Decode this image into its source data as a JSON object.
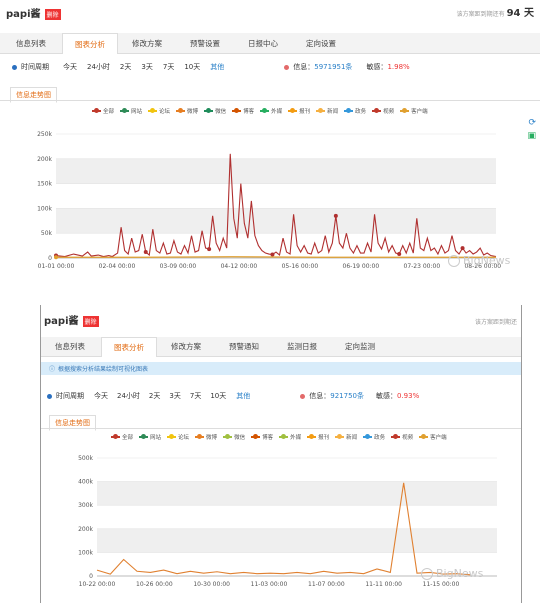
{
  "screen1": {
    "title": "papi酱",
    "badge": "删除",
    "expire_label": "该方案距到期还有",
    "expire_value": "94 天",
    "tabs": [
      {
        "label": "信息列表",
        "active": false
      },
      {
        "label": "图表分析",
        "active": true
      },
      {
        "label": "修改方案",
        "active": false
      },
      {
        "label": "预警设置",
        "active": false
      },
      {
        "label": "日报中心",
        "active": false
      },
      {
        "label": "定向设置",
        "active": false
      }
    ],
    "period": {
      "label": "时间周期",
      "options": [
        "今天",
        "24小时",
        "2天",
        "3天",
        "7天",
        "10天"
      ],
      "other": "其他",
      "info_label": "信息：",
      "info_value": "5971951条",
      "sensitive_label": "敏感：",
      "sensitive_value": "1.98%"
    },
    "chart_tab": "信息走势图",
    "legend": [
      {
        "name": "全部",
        "color": "#c0392b"
      },
      {
        "name": "网站",
        "color": "#2e8b57"
      },
      {
        "name": "论坛",
        "color": "#f1c40f"
      },
      {
        "name": "微博",
        "color": "#e67e22"
      },
      {
        "name": "微信",
        "color": "#1e8c5a"
      },
      {
        "name": "博客",
        "color": "#d35400"
      },
      {
        "name": "外媒",
        "color": "#27ae60"
      },
      {
        "name": "报刊",
        "color": "#f39c12"
      },
      {
        "name": "新闻",
        "color": "#f5b041"
      },
      {
        "name": "政务",
        "color": "#3498db"
      },
      {
        "name": "视频",
        "color": "#c0392b"
      },
      {
        "name": "客户端",
        "color": "#e0a030"
      }
    ],
    "chart_data": {
      "type": "line",
      "y_ticks": [
        "0",
        "50k",
        "100k",
        "150k",
        "200k",
        "250k"
      ],
      "ylim": [
        0,
        250000
      ],
      "x_ticks": [
        "01-01 00:00",
        "02-04 00:00",
        "03-09 00:00",
        "04-12 00:00",
        "05-16 00:00",
        "06-19 00:00",
        "07-23 00:00",
        "08-26 00:00"
      ],
      "series": [
        {
          "name": "全部",
          "color": "#b03030",
          "points": [
            [
              0,
              5000
            ],
            [
              5,
              3000
            ],
            [
              10,
              8000
            ],
            [
              15,
              4000
            ],
            [
              18,
              12000
            ],
            [
              20,
              4000
            ],
            [
              24,
              6000
            ],
            [
              27,
              3000
            ],
            [
              30,
              5000
            ],
            [
              32,
              3000
            ],
            [
              35,
              10000
            ],
            [
              37,
              62000
            ],
            [
              39,
              15000
            ],
            [
              41,
              8000
            ],
            [
              43,
              40000
            ],
            [
              45,
              12000
            ],
            [
              47,
              15000
            ],
            [
              49,
              48000
            ],
            [
              51,
              12000
            ],
            [
              53,
              6000
            ],
            [
              55,
              58000
            ],
            [
              57,
              15000
            ],
            [
              59,
              10000
            ],
            [
              61,
              30000
            ],
            [
              63,
              8000
            ],
            [
              65,
              10000
            ],
            [
              67,
              35000
            ],
            [
              69,
              12000
            ],
            [
              71,
              8000
            ],
            [
              73,
              25000
            ],
            [
              75,
              10000
            ],
            [
              77,
              45000
            ],
            [
              79,
              12000
            ],
            [
              81,
              15000
            ],
            [
              83,
              55000
            ],
            [
              85,
              20000
            ],
            [
              87,
              18000
            ],
            [
              89,
              85000
            ],
            [
              91,
              30000
            ],
            [
              93,
              15000
            ],
            [
              95,
              40000
            ],
            [
              97,
              20000
            ],
            [
              99,
              210000
            ],
            [
              101,
              80000
            ],
            [
              103,
              40000
            ],
            [
              105,
              150000
            ],
            [
              107,
              70000
            ],
            [
              109,
              40000
            ],
            [
              111,
              115000
            ],
            [
              113,
              45000
            ],
            [
              115,
              25000
            ],
            [
              117,
              15000
            ],
            [
              119,
              10000
            ],
            [
              121,
              8000
            ],
            [
              123,
              7000
            ],
            [
              125,
              12000
            ],
            [
              127,
              6000
            ],
            [
              129,
              40000
            ],
            [
              131,
              12000
            ],
            [
              133,
              8000
            ],
            [
              135,
              88000
            ],
            [
              137,
              25000
            ],
            [
              139,
              12000
            ],
            [
              141,
              25000
            ],
            [
              143,
              10000
            ],
            [
              145,
              8000
            ],
            [
              147,
              30000
            ],
            [
              149,
              10000
            ],
            [
              151,
              15000
            ],
            [
              153,
              45000
            ],
            [
              155,
              12000
            ],
            [
              157,
              30000
            ],
            [
              159,
              85000
            ],
            [
              161,
              30000
            ],
            [
              163,
              20000
            ],
            [
              165,
              50000
            ],
            [
              167,
              20000
            ],
            [
              169,
              10000
            ],
            [
              171,
              25000
            ],
            [
              173,
              10000
            ],
            [
              175,
              10000
            ],
            [
              177,
              30000
            ],
            [
              179,
              12000
            ],
            [
              181,
              88000
            ],
            [
              183,
              30000
            ],
            [
              185,
              18000
            ],
            [
              187,
              40000
            ],
            [
              189,
              12000
            ],
            [
              191,
              25000
            ],
            [
              193,
              10000
            ],
            [
              195,
              8000
            ],
            [
              197,
              25000
            ],
            [
              199,
              10000
            ],
            [
              201,
              30000
            ],
            [
              203,
              10000
            ],
            [
              205,
              80000
            ],
            [
              207,
              20000
            ],
            [
              209,
              15000
            ],
            [
              211,
              40000
            ],
            [
              213,
              15000
            ],
            [
              215,
              20000
            ],
            [
              217,
              8000
            ],
            [
              219,
              25000
            ],
            [
              221,
              10000
            ],
            [
              223,
              15000
            ],
            [
              225,
              45000
            ],
            [
              227,
              15000
            ],
            [
              229,
              8000
            ],
            [
              231,
              20000
            ],
            [
              233,
              10000
            ],
            [
              235,
              15000
            ],
            [
              237,
              8000
            ],
            [
              239,
              12000
            ],
            [
              241,
              20000
            ],
            [
              243,
              6000
            ],
            [
              245,
              10000
            ],
            [
              247,
              5000
            ],
            [
              250,
              3000
            ]
          ]
        },
        {
          "name": "微博",
          "color": "#e0a030",
          "points": [
            [
              0,
              1500
            ],
            [
              50,
              1500
            ],
            [
              100,
              2500
            ],
            [
              150,
              1500
            ],
            [
              200,
              1500
            ],
            [
              250,
              1500
            ]
          ]
        }
      ]
    }
  },
  "screen2": {
    "title": "papi酱",
    "badge": "删除",
    "expire_label": "该方案距到期还",
    "tabs": [
      {
        "label": "信息列表",
        "active": false
      },
      {
        "label": "图表分析",
        "active": true
      },
      {
        "label": "修改方案",
        "active": false
      },
      {
        "label": "预警通知",
        "active": false
      },
      {
        "label": "监测日报",
        "active": false
      },
      {
        "label": "定向监测",
        "active": false
      }
    ],
    "info_bar": "根据搜索分析结果绘制可视化图表",
    "period": {
      "label": "时间周期",
      "options": [
        "今天",
        "24小时",
        "2天",
        "3天",
        "7天",
        "10天"
      ],
      "other": "其他",
      "info_label": "信息：",
      "info_value": "921750条",
      "sensitive_label": "敏感：",
      "sensitive_value": "0.93%"
    },
    "chart_tab": "信息走势图",
    "legend": [
      {
        "name": "全部",
        "color": "#c0392b"
      },
      {
        "name": "网站",
        "color": "#2e8b57"
      },
      {
        "name": "论坛",
        "color": "#f1c40f"
      },
      {
        "name": "微博",
        "color": "#e67e22"
      },
      {
        "name": "微信",
        "color": "#a0c040"
      },
      {
        "name": "博客",
        "color": "#d35400"
      },
      {
        "name": "外媒",
        "color": "#a0c040"
      },
      {
        "name": "报刊",
        "color": "#f39c12"
      },
      {
        "name": "新闻",
        "color": "#f5b041"
      },
      {
        "name": "政务",
        "color": "#3498db"
      },
      {
        "name": "视频",
        "color": "#c0392b"
      },
      {
        "name": "客户端",
        "color": "#e0a030"
      }
    ],
    "chart_data": {
      "type": "line",
      "y_ticks": [
        "0",
        "100k",
        "200k",
        "300k",
        "400k",
        "500k"
      ],
      "ylim": [
        0,
        500000
      ],
      "x_ticks": [
        "10-22 00:00",
        "10-26 00:00",
        "10-30 00:00",
        "11-03 00:00",
        "11-07 00:00",
        "11-11 00:00",
        "11-15 00:00"
      ],
      "series": [
        {
          "name": "全部",
          "color": "#e08030",
          "points": [
            [
              0,
              25000
            ],
            [
              1,
              8000
            ],
            [
              2,
              70000
            ],
            [
              3,
              20000
            ],
            [
              4,
              15000
            ],
            [
              5,
              25000
            ],
            [
              6,
              10000
            ],
            [
              7,
              20000
            ],
            [
              8,
              12000
            ],
            [
              9,
              18000
            ],
            [
              10,
              10000
            ],
            [
              11,
              15000
            ],
            [
              12,
              10000
            ],
            [
              13,
              12000
            ],
            [
              14,
              10000
            ],
            [
              15,
              15000
            ],
            [
              16,
              10000
            ],
            [
              17,
              20000
            ],
            [
              18,
              12000
            ],
            [
              19,
              15000
            ],
            [
              20,
              10000
            ],
            [
              21,
              30000
            ],
            [
              22,
              15000
            ],
            [
              23,
              395000
            ],
            [
              24,
              12000
            ],
            [
              25,
              15000
            ],
            [
              26,
              8000
            ],
            [
              27,
              10000
            ],
            [
              28,
              5000
            ]
          ]
        }
      ]
    }
  },
  "watermark": "BigNews"
}
